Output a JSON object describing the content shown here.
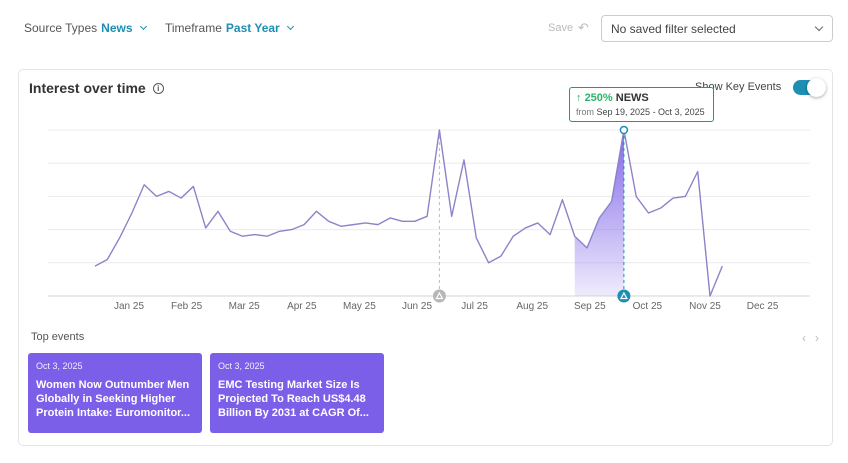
{
  "filters": {
    "source_label": "Source Types",
    "source_value": "News",
    "timeframe_label": "Timeframe",
    "timeframe_value": "Past Year",
    "save_label": "Save",
    "saved_filter_placeholder": "No saved filter selected"
  },
  "card": {
    "title": "Interest over time",
    "key_events_label": "Show Key Events",
    "key_events_on": true
  },
  "tooltip": {
    "pct": "250%",
    "source": "NEWS",
    "from_label": "from",
    "range": "Sep 19, 2025 - Oct 3, 2025"
  },
  "chart_data": {
    "type": "line",
    "x_ticks": [
      "Jan 25",
      "Feb 25",
      "Mar 25",
      "Apr 25",
      "May 25",
      "Jun 25",
      "Jul 25",
      "Aug 25",
      "Sep 25",
      "Oct 25",
      "Nov 25",
      "Dec 25"
    ],
    "y_range": [
      0,
      100
    ],
    "grid": true,
    "values": [
      18,
      22,
      35,
      50,
      67,
      60,
      63,
      59,
      66,
      41,
      51,
      39,
      36,
      37,
      36,
      39,
      40,
      43,
      51,
      45,
      42,
      43,
      44,
      43,
      47,
      45,
      45,
      48,
      100,
      48,
      82,
      35,
      20,
      24,
      36,
      41,
      44,
      37,
      58,
      36,
      29,
      47,
      57,
      100,
      60,
      50,
      53,
      59,
      60,
      75,
      0,
      18
    ],
    "highlight_range_index": [
      39,
      43
    ],
    "event_indices": [
      28,
      43
    ],
    "line_color": "#8b84c9",
    "fill_color": "#7b5fe8"
  },
  "top_events": {
    "label": "Top events",
    "items": [
      {
        "date": "Oct 3, 2025",
        "headline": "Women Now Outnumber Men Globally in Seeking Higher Protein Intake: Euromonitor..."
      },
      {
        "date": "Oct 3, 2025",
        "headline": "EMC Testing Market Size Is Projected To Reach US$4.48 Billion By 2031 at CAGR Of..."
      }
    ]
  }
}
